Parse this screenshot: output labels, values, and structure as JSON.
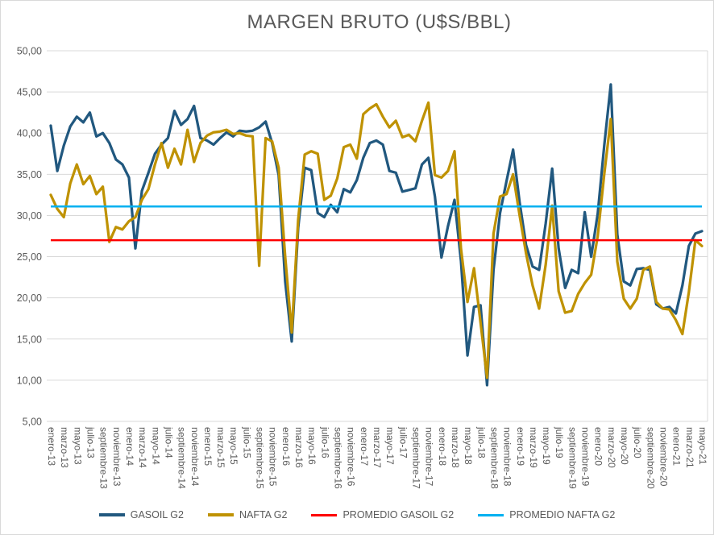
{
  "title": "MARGEN BRUTO (U$S/BBL)",
  "colors": {
    "gasoil": "#21587F",
    "nafta": "#BF9202",
    "promedio_gasoil": "#FE0000",
    "promedio_nafta": "#00B0F0",
    "grid": "#D9D9D9",
    "text": "#595959"
  },
  "legend": [
    {
      "label": "GASOIL G2",
      "color": "#21587F",
      "thickness": 4
    },
    {
      "label": "NAFTA G2",
      "color": "#BF9202",
      "thickness": 4
    },
    {
      "label": "PROMEDIO GASOIL G2",
      "color": "#FE0000",
      "thickness": 3
    },
    {
      "label": "PROMEDIO NAFTA G2",
      "color": "#00B0F0",
      "thickness": 3
    }
  ],
  "chart_data": {
    "type": "line",
    "title": "MARGEN BRUTO (U$S/BBL)",
    "xlabel": "",
    "ylabel": "",
    "grid": "horizontal",
    "legend_position": "bottom",
    "ylim": [
      5,
      50
    ],
    "y_ticks": [
      50,
      45,
      40,
      35,
      30,
      25,
      20,
      15,
      10,
      5
    ],
    "y_tick_labels": [
      "50,00",
      "45,00",
      "40,00",
      "35,00",
      "30,00",
      "25,00",
      "20,00",
      "15,00",
      "10,00",
      "5,00"
    ],
    "x_start_label": "enero-13",
    "x_end_label": "mayo-21",
    "months_per_tick_label": 2,
    "x_tick_labels": [
      "enero-13",
      "marzo-13",
      "mayo-13",
      "julio-13",
      "septiembre-13",
      "noviembre-13",
      "enero-14",
      "marzo-14",
      "mayo-14",
      "julio-14",
      "septiembre-14",
      "noviembre-14",
      "enero-15",
      "marzo-15",
      "mayo-15",
      "julio-15",
      "septiembre-15",
      "noviembre-15",
      "enero-16",
      "marzo-16",
      "mayo-16",
      "julio-16",
      "septiembre-16",
      "noviembre-16",
      "enero-17",
      "marzo-17",
      "mayo-17",
      "julio-17",
      "septiembre-17",
      "noviembre-17",
      "enero-18",
      "marzo-18",
      "mayo-18",
      "julio-18",
      "septiembre-18",
      "noviembre-18",
      "enero-19",
      "marzo-19",
      "mayo-19",
      "julio-19",
      "septiembre-19",
      "noviembre-19",
      "enero-20",
      "marzo-20",
      "mayo-20",
      "julio-20",
      "septiembre-20",
      "noviembre-20",
      "enero-21",
      "marzo-21",
      "mayo-21"
    ],
    "series": [
      {
        "name": "GASOIL G2",
        "color": "#21587F",
        "width": 3.25,
        "values": [
          40.9,
          35.4,
          38.5,
          40.8,
          42.0,
          41.3,
          42.5,
          39.6,
          40.0,
          38.8,
          36.8,
          36.2,
          34.6,
          26.0,
          33.0,
          35.2,
          37.5,
          38.6,
          39.4,
          42.7,
          41.0,
          41.7,
          43.3,
          39.4,
          39.1,
          38.6,
          39.4,
          40.1,
          39.6,
          40.3,
          40.2,
          40.3,
          40.7,
          41.4,
          38.8,
          34.9,
          22.0,
          14.7,
          28.5,
          35.8,
          35.5,
          30.3,
          29.8,
          31.3,
          30.4,
          33.2,
          32.8,
          34.3,
          37.0,
          38.8,
          39.1,
          38.6,
          35.4,
          35.2,
          32.9,
          33.1,
          33.3,
          36.2,
          37.0,
          32.3,
          24.9,
          28.7,
          31.9,
          24.5,
          13.0,
          18.9,
          19.1,
          9.4,
          23.4,
          30.3,
          34.2,
          38.0,
          31.6,
          26.4,
          23.8,
          23.4,
          29.0,
          35.7,
          26.0,
          21.2,
          23.4,
          23.0,
          30.4,
          25.0,
          30.2,
          38.5,
          45.9,
          27.7,
          22.0,
          21.5,
          23.5,
          23.6,
          23.4,
          19.2,
          18.7,
          18.9,
          18.1,
          21.5,
          26.3,
          27.8,
          28.1
        ]
      },
      {
        "name": "NAFTA G2",
        "color": "#BF9202",
        "width": 3.25,
        "values": [
          32.5,
          30.8,
          29.8,
          33.9,
          36.2,
          33.8,
          34.8,
          32.6,
          33.5,
          26.8,
          28.6,
          28.3,
          29.3,
          29.8,
          31.9,
          33.2,
          36.2,
          38.8,
          35.8,
          38.1,
          36.2,
          40.4,
          36.5,
          38.8,
          39.7,
          40.1,
          40.2,
          40.4,
          39.9,
          40.0,
          39.7,
          39.6,
          23.9,
          39.4,
          39.0,
          35.8,
          25.0,
          15.8,
          29.5,
          37.4,
          37.8,
          37.5,
          31.9,
          32.4,
          34.5,
          38.3,
          38.6,
          36.9,
          42.3,
          43.0,
          43.5,
          42.0,
          40.7,
          41.5,
          39.5,
          39.8,
          39.0,
          41.5,
          43.7,
          34.9,
          34.6,
          35.4,
          37.8,
          26.0,
          19.5,
          23.6,
          17.0,
          10.3,
          27.8,
          32.3,
          32.6,
          35.0,
          30.0,
          25.4,
          21.5,
          18.7,
          24.0,
          31.2,
          20.8,
          18.2,
          18.4,
          20.5,
          21.8,
          22.8,
          27.5,
          35.0,
          41.7,
          24.4,
          19.9,
          18.7,
          19.9,
          23.4,
          23.8,
          19.5,
          18.7,
          18.6,
          17.3,
          15.6,
          20.7,
          27.0,
          26.3
        ]
      },
      {
        "name": "PROMEDIO GASOIL G2",
        "color": "#FE0000",
        "width": 2.5,
        "constant": 27.0
      },
      {
        "name": "PROMEDIO NAFTA G2",
        "color": "#00B0F0",
        "width": 2.5,
        "constant": 31.1
      }
    ]
  }
}
